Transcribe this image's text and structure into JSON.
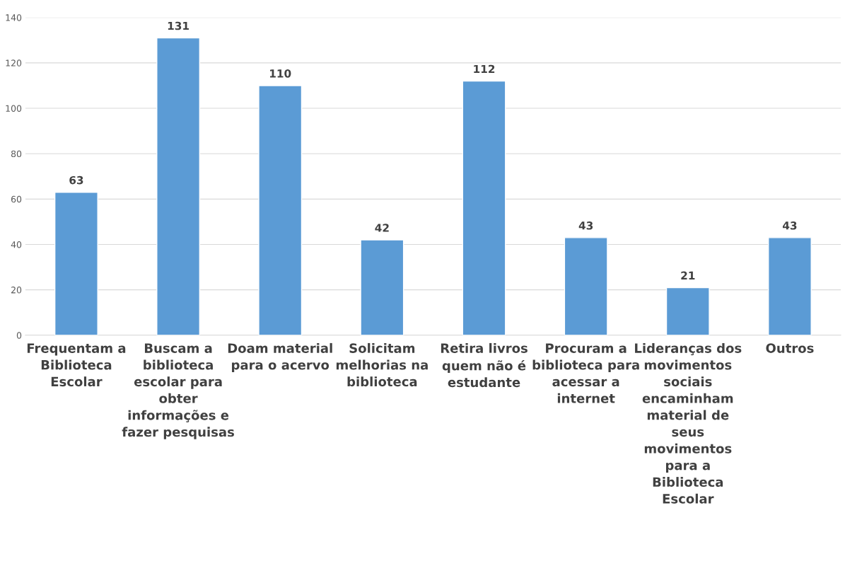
{
  "chart_data": {
    "type": "bar",
    "categories": [
      "Frequentam a\nBiblioteca\nEscolar",
      "Buscam a\nbiblioteca\nescolar para\nobter\ninformações e\nfazer pesquisas",
      "Doam material\npara o acervo",
      "Solicitam\nmelhorias na\nbiblioteca",
      "Retira livros\nquem não é\nestudante",
      "Procuram a\nbiblioteca para\nacessar a\ninternet",
      "Lideranças dos\nmovimentos\nsociais\nencaminham\nmaterial de\nseus\nmovimentos\npara a\nBiblioteca\nEscolar",
      "Outros"
    ],
    "values": [
      63,
      131,
      110,
      42,
      112,
      43,
      21,
      43
    ],
    "color": "#5b9bd5",
    "ylim": [
      0,
      140
    ],
    "yticks": [
      0,
      20,
      40,
      60,
      80,
      100,
      120,
      140
    ],
    "grid": "y",
    "data_labels": true
  }
}
